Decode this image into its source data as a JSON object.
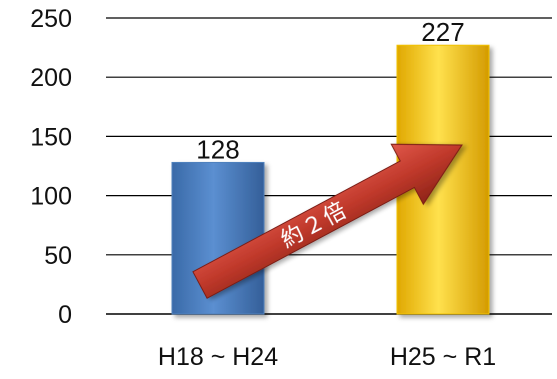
{
  "chart_data": {
    "type": "bar",
    "categories": [
      "H18 ~ H24",
      "H25 ~ R1"
    ],
    "values": [
      128,
      227
    ],
    "ylim": [
      0,
      250
    ],
    "yticks": [
      0,
      50,
      100,
      150,
      200,
      250
    ],
    "grid": true,
    "bar_colors": [
      "#4f81bd",
      "#f2c200"
    ],
    "annotation": {
      "text": "約２倍",
      "shape": "arrow-from-first-to-second-bar",
      "color": "#c0392b"
    }
  }
}
